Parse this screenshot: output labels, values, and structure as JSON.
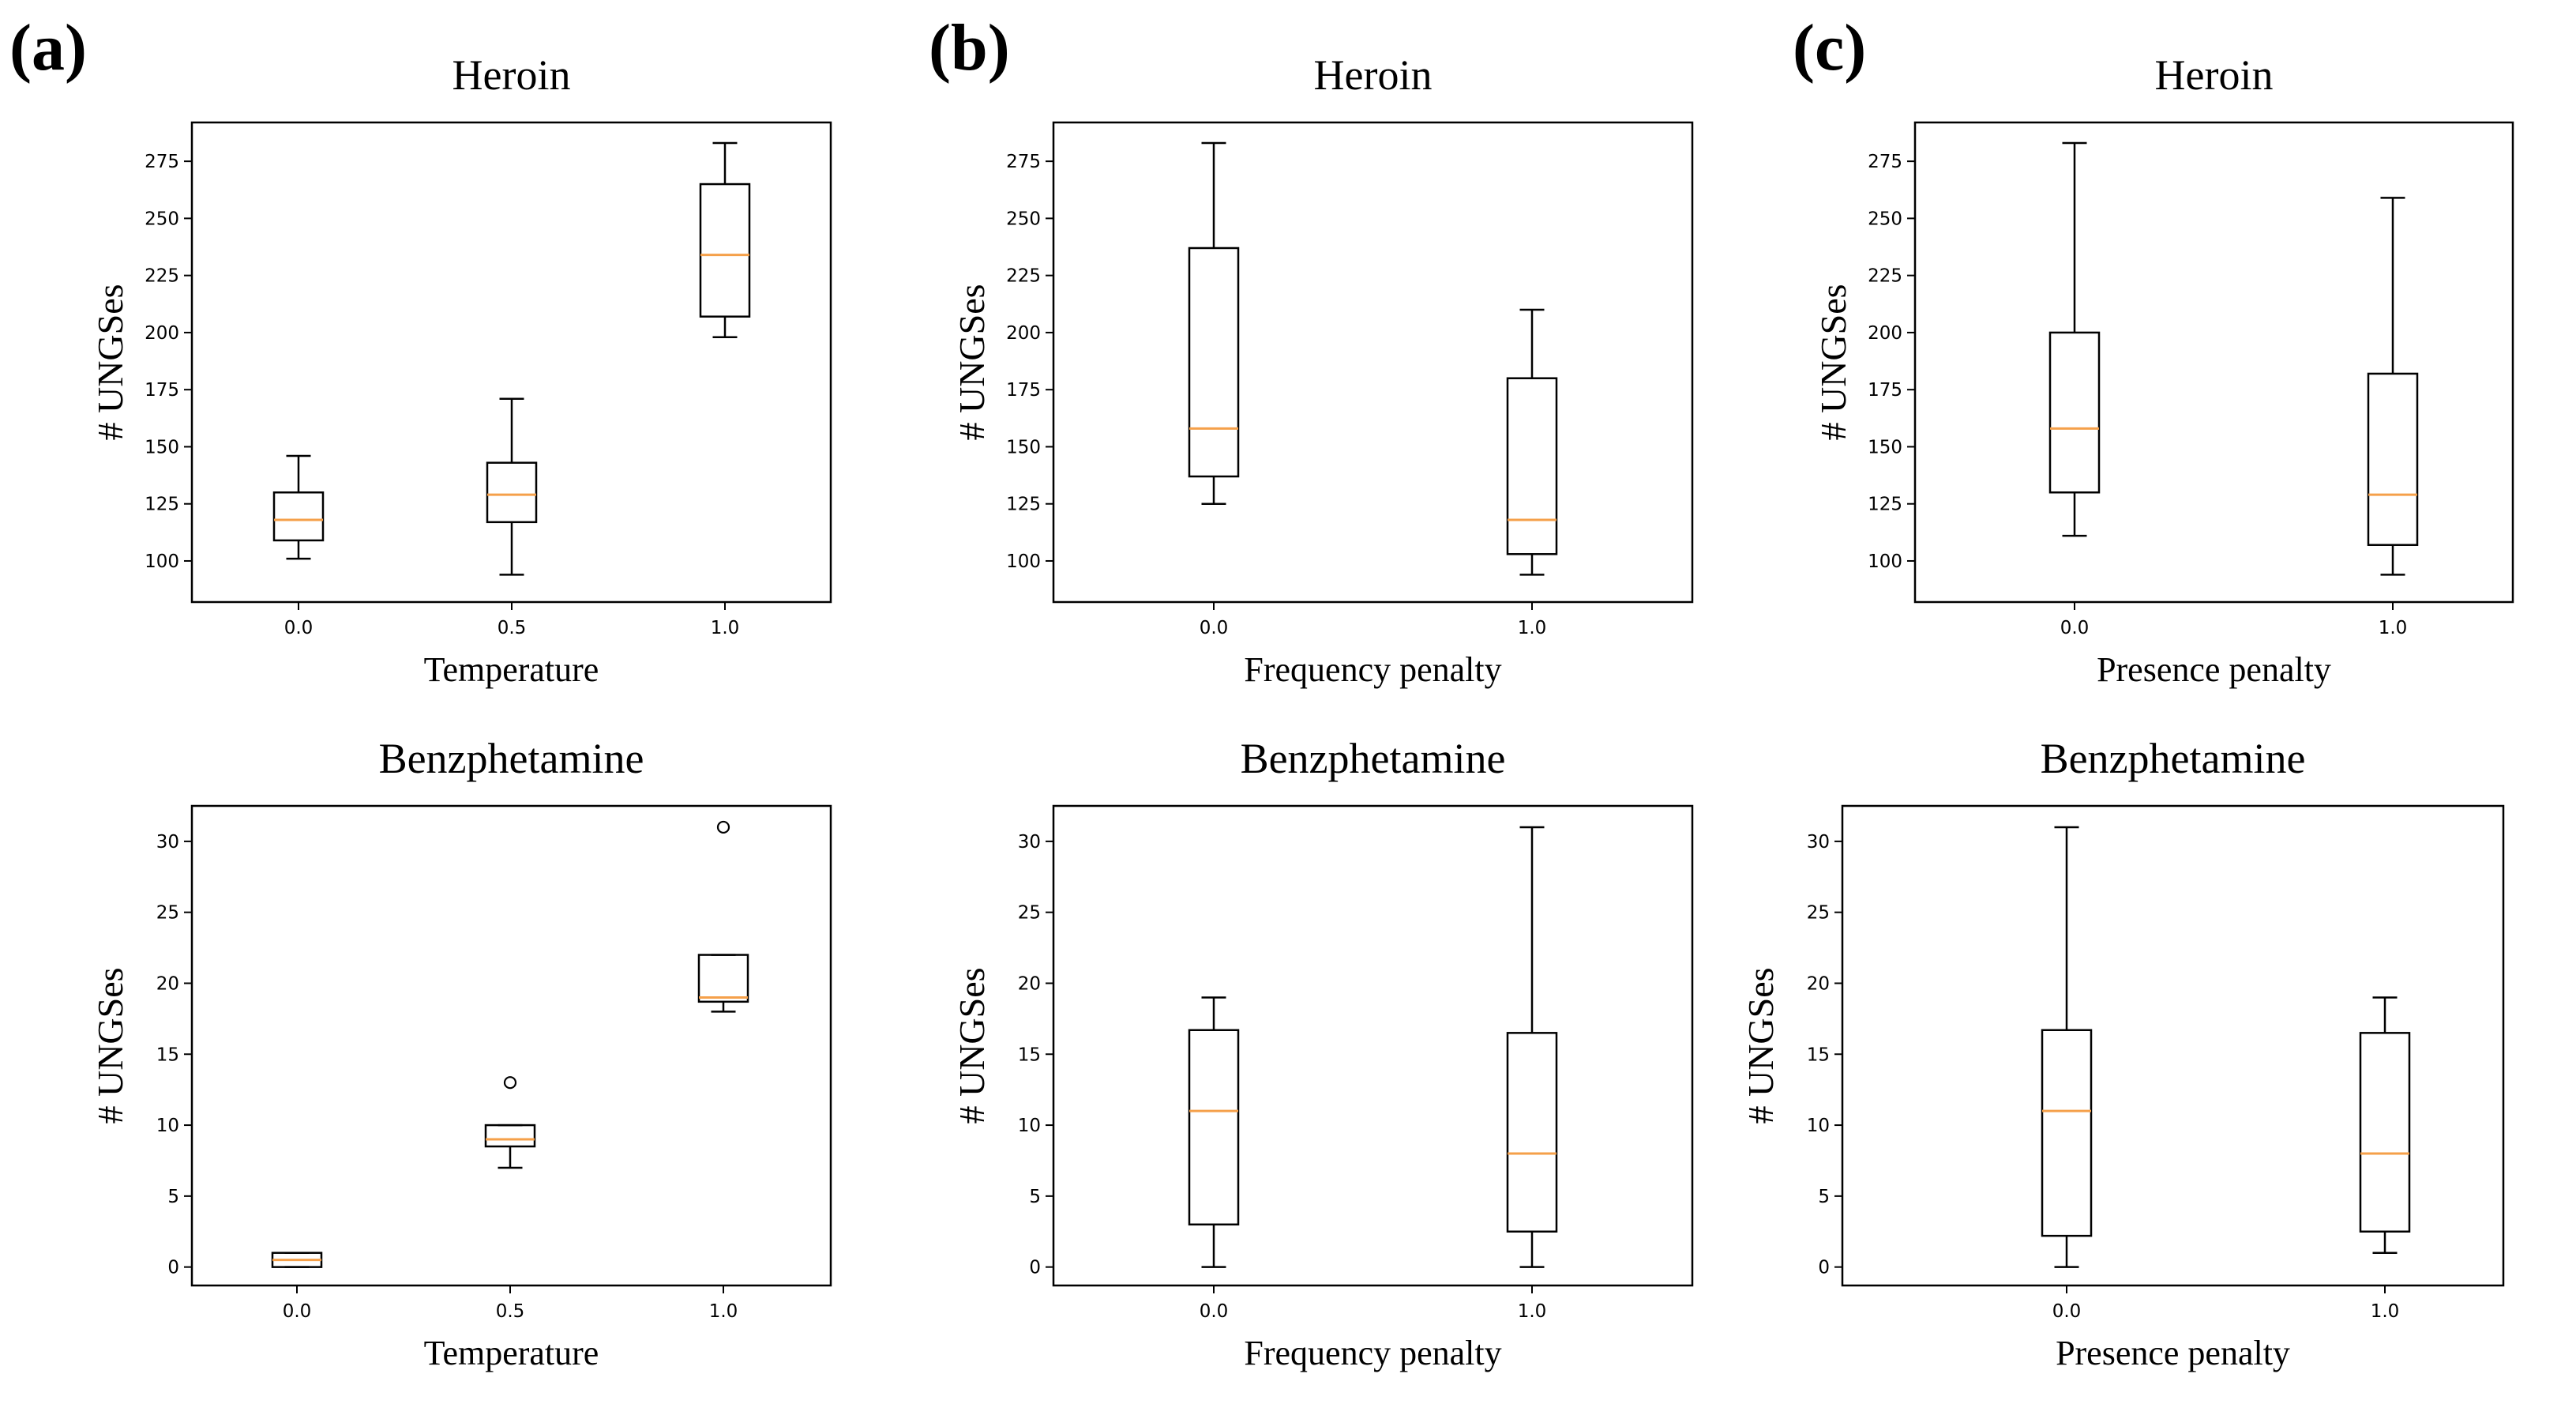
{
  "figure": {
    "panel_labels": [
      "(a)",
      "(b)",
      "(c)"
    ]
  },
  "colors": {
    "median": "#f5a04a",
    "box": "#000000",
    "background": "#ffffff"
  },
  "chart_data": [
    {
      "id": "a-top",
      "type": "boxplot",
      "panel": "(a)",
      "title": "Heroin",
      "xlabel": "Temperature",
      "ylabel": "# UNGSes",
      "ylim": [
        82,
        292
      ],
      "yticks": [
        100,
        125,
        150,
        175,
        200,
        225,
        250,
        275
      ],
      "ytick_labels": [
        "100",
        "125",
        "150",
        "175",
        "200",
        "225",
        "250",
        "275"
      ],
      "categories": [
        "0.0",
        "0.5",
        "1.0"
      ],
      "boxes": [
        {
          "whisker_low": 101,
          "q1": 109,
          "median": 118,
          "q3": 130,
          "whisker_high": 146,
          "outliers": []
        },
        {
          "whisker_low": 94,
          "q1": 117,
          "median": 129,
          "q3": 143,
          "whisker_high": 171,
          "outliers": []
        },
        {
          "whisker_low": 198,
          "q1": 207,
          "median": 234,
          "q3": 265,
          "whisker_high": 283,
          "outliers": []
        }
      ]
    },
    {
      "id": "b-top",
      "type": "boxplot",
      "panel": "(b)",
      "title": "Heroin",
      "xlabel": "Frequency penalty",
      "ylabel": "# UNGSes",
      "ylim": [
        82,
        292
      ],
      "yticks": [
        100,
        125,
        150,
        175,
        200,
        225,
        250,
        275
      ],
      "ytick_labels": [
        "100",
        "125",
        "150",
        "175",
        "200",
        "225",
        "250",
        "275"
      ],
      "categories": [
        "0.0",
        "1.0"
      ],
      "boxes": [
        {
          "whisker_low": 125,
          "q1": 137,
          "median": 158,
          "q3": 237,
          "whisker_high": 283,
          "outliers": []
        },
        {
          "whisker_low": 94,
          "q1": 103,
          "median": 118,
          "q3": 180,
          "whisker_high": 210,
          "outliers": []
        }
      ]
    },
    {
      "id": "c-top",
      "type": "boxplot",
      "panel": "(c)",
      "title": "Heroin",
      "xlabel": "Presence penalty",
      "ylabel": "# UNGSes",
      "ylim": [
        82,
        292
      ],
      "yticks": [
        100,
        125,
        150,
        175,
        200,
        225,
        250,
        275
      ],
      "ytick_labels": [
        "100",
        "125",
        "150",
        "175",
        "200",
        "225",
        "250",
        "275"
      ],
      "categories": [
        "0.0",
        "1.0"
      ],
      "boxes": [
        {
          "whisker_low": 111,
          "q1": 130,
          "median": 158,
          "q3": 200,
          "whisker_high": 283,
          "outliers": []
        },
        {
          "whisker_low": 94,
          "q1": 107,
          "median": 129,
          "q3": 182,
          "whisker_high": 259,
          "outliers": []
        }
      ]
    },
    {
      "id": "a-bottom",
      "type": "boxplot",
      "panel": "(a)",
      "title": "Benzphetamine",
      "xlabel": "Temperature",
      "ylabel": "# UNGSes",
      "ylim": [
        -1.3,
        32.5
      ],
      "yticks": [
        0,
        5,
        10,
        15,
        20,
        25,
        30
      ],
      "ytick_labels": [
        "0",
        "5",
        "10",
        "15",
        "20",
        "25",
        "30"
      ],
      "categories": [
        "0.0",
        "0.5",
        "1.0"
      ],
      "boxes": [
        {
          "whisker_low": 0,
          "q1": 0,
          "median": 0.5,
          "q3": 1,
          "whisker_high": 1,
          "outliers": []
        },
        {
          "whisker_low": 7,
          "q1": 8.5,
          "median": 9,
          "q3": 10,
          "whisker_high": 10,
          "outliers": [
            13
          ]
        },
        {
          "whisker_low": 18,
          "q1": 18.7,
          "median": 19,
          "q3": 22,
          "whisker_high": 22,
          "outliers": [
            31
          ]
        }
      ]
    },
    {
      "id": "b-bottom",
      "type": "boxplot",
      "panel": "(b)",
      "title": "Benzphetamine",
      "xlabel": "Frequency penalty",
      "ylabel": "# UNGSes",
      "ylim": [
        -1.3,
        32.5
      ],
      "yticks": [
        0,
        5,
        10,
        15,
        20,
        25,
        30
      ],
      "ytick_labels": [
        "0",
        "5",
        "10",
        "15",
        "20",
        "25",
        "30"
      ],
      "categories": [
        "0.0",
        "1.0"
      ],
      "boxes": [
        {
          "whisker_low": 0,
          "q1": 3,
          "median": 11,
          "q3": 16.7,
          "whisker_high": 19,
          "outliers": []
        },
        {
          "whisker_low": 0,
          "q1": 2.5,
          "median": 8,
          "q3": 16.5,
          "whisker_high": 31,
          "outliers": []
        }
      ]
    },
    {
      "id": "c-bottom",
      "type": "boxplot",
      "panel": "(c)",
      "title": "Benzphetamine",
      "xlabel": "Presence penalty",
      "ylabel": "# UNGSes",
      "ylim": [
        -1.3,
        32.5
      ],
      "yticks": [
        0,
        5,
        10,
        15,
        20,
        25,
        30
      ],
      "ytick_labels": [
        "0",
        "5",
        "10",
        "15",
        "20",
        "25",
        "30"
      ],
      "categories": [
        "0.0",
        "1.0"
      ],
      "boxes": [
        {
          "whisker_low": 0,
          "q1": 2.2,
          "median": 11,
          "q3": 16.7,
          "whisker_high": 31,
          "outliers": []
        },
        {
          "whisker_low": 1,
          "q1": 2.5,
          "median": 8,
          "q3": 16.5,
          "whisker_high": 19,
          "outliers": []
        }
      ]
    }
  ]
}
